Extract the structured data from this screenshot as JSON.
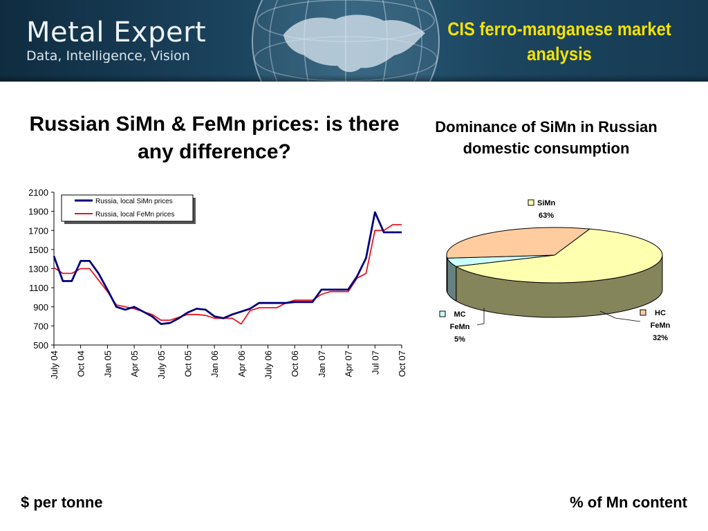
{
  "header": {
    "logo_name": "Metal Expert",
    "logo_tagline": "Data,  Intelligence,  Vision",
    "slide_title": "CIS ferro-manganese market analysis"
  },
  "left_panel": {
    "title": "Russian SiMn & FeMn prices: is there any difference?"
  },
  "right_panel": {
    "title": "Dominance of SiMn in Russian domestic consumption"
  },
  "footer": {
    "left_note": "$ per tonne",
    "right_note": "% of Mn content"
  },
  "colors": {
    "simn_line": "#00007a",
    "femn_line": "#e8141e",
    "pie_simn": "#ffffb0",
    "pie_hc": "#ffcca0",
    "pie_mc": "#ccffff",
    "banner_title": "#f5e200"
  },
  "chart_data": [
    {
      "type": "line",
      "title": "",
      "xlabel": "",
      "ylabel": "",
      "ylim": [
        500,
        2100
      ],
      "yticks": [
        "2100",
        "1900",
        "1700",
        "1500",
        "1300",
        "1100",
        "900",
        "700",
        "500"
      ],
      "xtick_labels": [
        "July 04",
        "Oct 04",
        "Jan 05",
        "Apr 05",
        "July 05",
        "Oct 05",
        "Jan 06",
        "Apr 06",
        "July 06",
        "Oct 06",
        "Jan 07",
        "Apr 07",
        "Jul 07",
        "Oct 07"
      ],
      "legend_position": "top-left",
      "series": [
        {
          "name": "Russia, local SiMn prices",
          "values": [
            1430,
            1170,
            1170,
            1380,
            1380,
            1250,
            1080,
            900,
            870,
            900,
            850,
            800,
            720,
            730,
            780,
            840,
            880,
            870,
            800,
            780,
            820,
            850,
            880,
            940,
            940,
            940,
            940,
            950,
            950,
            950,
            1080,
            1080,
            1080,
            1080,
            1220,
            1410,
            1890,
            1680,
            1680,
            1680
          ]
        },
        {
          "name": "Russia, local FeMn prices",
          "values": [
            1310,
            1250,
            1250,
            1300,
            1300,
            1180,
            1060,
            920,
            900,
            880,
            850,
            820,
            760,
            760,
            790,
            820,
            820,
            810,
            780,
            780,
            780,
            720,
            860,
            890,
            890,
            890,
            940,
            970,
            970,
            970,
            1030,
            1060,
            1060,
            1060,
            1200,
            1250,
            1700,
            1700,
            1760,
            1760
          ]
        }
      ]
    },
    {
      "type": "pie",
      "slices": [
        {
          "label": "SiMn",
          "value": 63,
          "value_label": "63%"
        },
        {
          "label": "HC FeMn",
          "value": 32,
          "value_label": "32%"
        },
        {
          "label": "MC FeMn",
          "value": 5,
          "value_label": "5%"
        }
      ]
    }
  ]
}
